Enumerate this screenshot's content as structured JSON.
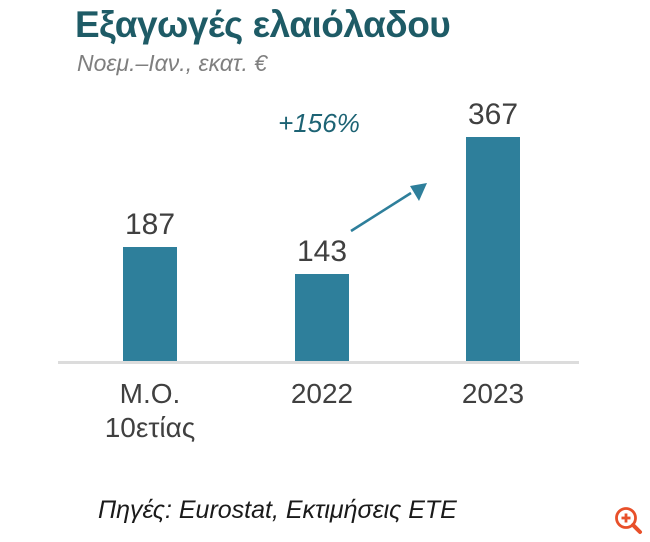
{
  "header": {
    "title": "Εξαγωγές ελαιόλαδου",
    "subtitle": "Νοεμ.–Ιαν., εκατ. €"
  },
  "chart_data": {
    "type": "bar",
    "title": "Εξαγωγές ελαιόλαδου",
    "subtitle": "Νοεμ.–Ιαν., εκατ. €",
    "categories": [
      "Μ.Ο.\n10ετίας",
      "2022",
      "2023"
    ],
    "values": [
      187,
      143,
      367
    ],
    "data_labels": [
      "187",
      "143",
      "367"
    ],
    "annotation": "+156%",
    "xlabel": "",
    "ylabel": "",
    "ylim": [
      0,
      380
    ],
    "grid": false,
    "legend": false,
    "bar_color": "#2E7F9B"
  },
  "footer": {
    "source": "Πηγές: Eurostat,  Εκτιμήσεις ΕΤΕ"
  },
  "icons": {
    "growth_arrow": "up-right-arrow",
    "zoom_in": "magnifier-plus"
  },
  "colors": {
    "title": "#1E5B66",
    "bar": "#2E7F9B",
    "annotation": "#1D6374",
    "labels": "#404040",
    "subtitle": "#7F7F7F",
    "axis_line": "#DCDCDC",
    "zoom_icon": "#E8502A"
  }
}
